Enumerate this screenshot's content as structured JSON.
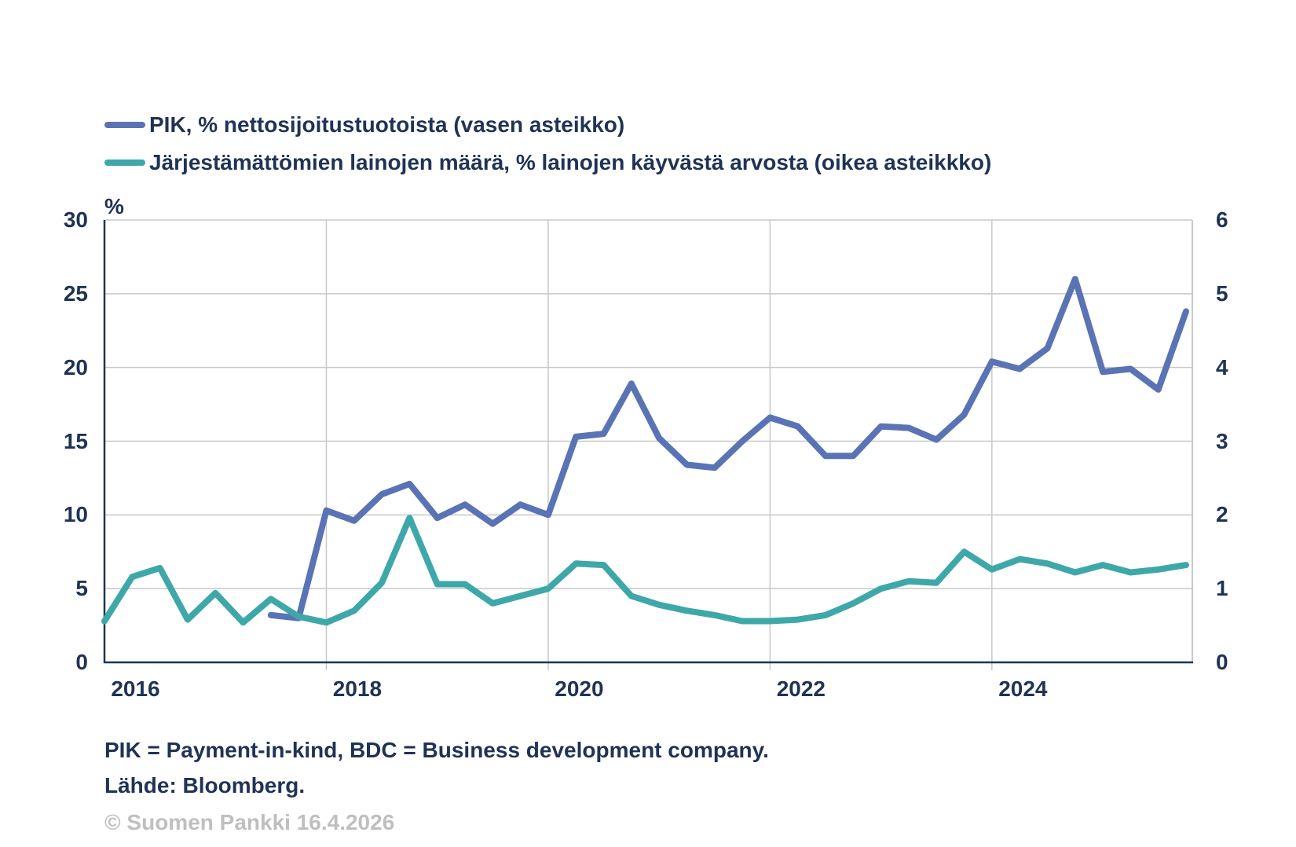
{
  "legend": {
    "items": [
      {
        "label": "PIK, % nettosijoitustuotoista (vasen asteikko)",
        "color": "#5A73B4"
      },
      {
        "label": "Järjestämättömien lainojen määrä, % lainojen käyvästä arvosta (oikea asteikkko)",
        "color": "#3EA8A9"
      }
    ]
  },
  "footnotes": {
    "definitions": "PIK = Payment-in-kind, BDC = Business development company.",
    "source": "Lähde: Bloomberg.",
    "copyright": "© Suomen Pankki 16.4.2026"
  },
  "chart_data": {
    "type": "line",
    "title": "",
    "categories": [
      "2016Q1",
      "2016Q2",
      "2016Q3",
      "2016Q4",
      "2017Q1",
      "2017Q2",
      "2017Q3",
      "2017Q4",
      "2018Q1",
      "2018Q2",
      "2018Q3",
      "2018Q4",
      "2019Q1",
      "2019Q2",
      "2019Q3",
      "2019Q4",
      "2020Q1",
      "2020Q2",
      "2020Q3",
      "2020Q4",
      "2021Q1",
      "2021Q2",
      "2021Q3",
      "2021Q4",
      "2022Q1",
      "2022Q2",
      "2022Q3",
      "2022Q4",
      "2023Q1",
      "2023Q2",
      "2023Q3",
      "2023Q4",
      "2024Q1",
      "2024Q2",
      "2024Q3",
      "2024Q4",
      "2025Q1",
      "2025Q2",
      "2025Q3",
      "2025Q4"
    ],
    "series": [
      {
        "name": "PIK, % nettosijoitustuotoista (vasen asteikko)",
        "axis": "left",
        "color": "#5A73B4",
        "values": [
          null,
          null,
          null,
          null,
          null,
          null,
          3.2,
          3.0,
          10.3,
          9.6,
          11.4,
          12.1,
          9.8,
          10.7,
          9.4,
          10.7,
          10.0,
          15.3,
          15.5,
          18.9,
          15.2,
          13.4,
          13.2,
          15.0,
          16.6,
          16.0,
          14.0,
          14.0,
          16.0,
          15.9,
          15.1,
          16.8,
          20.4,
          19.9,
          21.3,
          26.0,
          19.7,
          19.9,
          18.5,
          23.8
        ]
      },
      {
        "name": "Järjestämättömien lainojen määrä, % lainojen käyvästä arvosta (oikea asteikkko)",
        "axis": "right",
        "color": "#3EA8A9",
        "values": [
          0.56,
          1.16,
          1.28,
          0.58,
          0.94,
          0.54,
          0.86,
          0.62,
          0.54,
          0.7,
          1.08,
          1.96,
          1.06,
          1.06,
          0.8,
          0.9,
          1.0,
          1.34,
          1.32,
          0.9,
          0.78,
          0.7,
          0.64,
          0.56,
          0.56,
          0.58,
          0.64,
          0.8,
          1.0,
          1.1,
          1.08,
          1.5,
          1.26,
          1.4,
          1.34,
          1.22,
          1.32,
          1.22,
          1.26,
          1.32
        ]
      }
    ],
    "left_axis": {
      "label": "%",
      "min": 0,
      "max": 30,
      "ticks": [
        0,
        5,
        10,
        15,
        20,
        25,
        30
      ]
    },
    "right_axis": {
      "min": 0,
      "max": 6,
      "ticks": [
        0,
        1,
        2,
        3,
        4,
        5,
        6
      ]
    },
    "year_labels": [
      {
        "label": "2016",
        "index": 0
      },
      {
        "label": "2018",
        "index": 8
      },
      {
        "label": "2020",
        "index": 16
      },
      {
        "label": "2022",
        "index": 24
      },
      {
        "label": "2024",
        "index": 32
      }
    ],
    "grid": true,
    "legend_position": "top-left",
    "colors": {
      "axis": "#1F3355",
      "grid": "#C8C8C8"
    }
  }
}
